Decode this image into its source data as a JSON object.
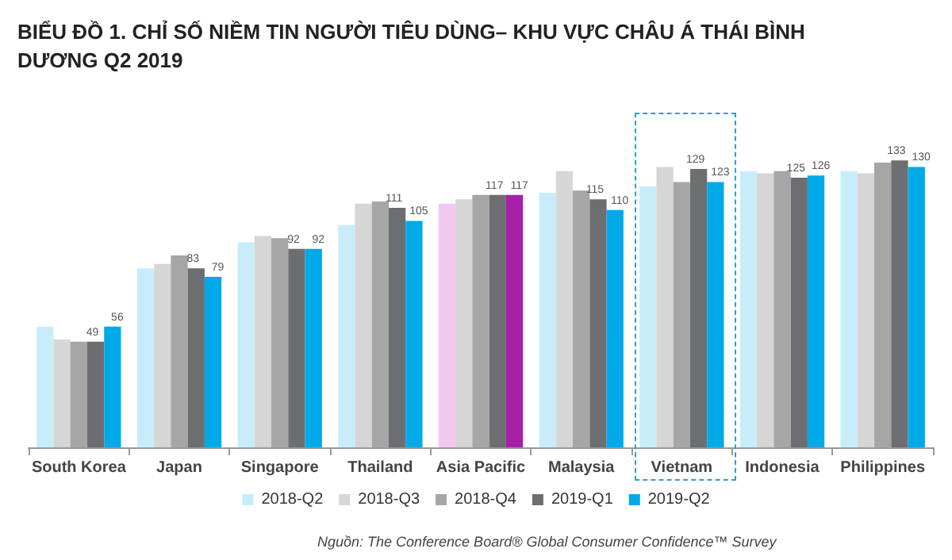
{
  "chart_data": {
    "type": "bar",
    "title": "BIỂU ĐỒ 1. CHỈ SỐ NIỀM TIN NGƯỜI TIÊU DÙNG– KHU VỰC CHÂU Á THÁI BÌNH DƯƠNG Q2 2019",
    "categories": [
      "South Korea",
      "Japan",
      "Singapore",
      "Thailand",
      "Asia Pacific",
      "Malaysia",
      "Vietnam",
      "Indonesia",
      "Philippines"
    ],
    "series": [
      {
        "name": "2018-Q2",
        "color": "#c9ecfb",
        "colors": [
          "#c9ecfb",
          "#c9ecfb",
          "#c9ecfb",
          "#c9ecfb",
          "#f2c8f0",
          "#c9ecfb",
          "#c9ecfb",
          "#c9ecfb",
          "#c9ecfb"
        ],
        "values": [
          56,
          83,
          95,
          103,
          113,
          118,
          121,
          128,
          128
        ]
      },
      {
        "name": "2018-Q3",
        "color": "#d6d6d6",
        "values": [
          50,
          85,
          98,
          113,
          115,
          128,
          130,
          127,
          127
        ]
      },
      {
        "name": "2018-Q4",
        "color": "#a6a6a6",
        "values": [
          49,
          89,
          97,
          114,
          117,
          119,
          123,
          128,
          132
        ]
      },
      {
        "name": "2019-Q1",
        "color": "#6d6e71",
        "values": [
          49,
          83,
          92,
          111,
          117,
          115,
          129,
          125,
          133
        ],
        "value_labels": [
          "49",
          "83",
          "92",
          "111",
          "117",
          "115",
          "129",
          "125",
          "133"
        ]
      },
      {
        "name": "2019-Q2",
        "color": "#00a9e8",
        "colors": [
          "#00a9e8",
          "#00a9e8",
          "#00a9e8",
          "#00a9e8",
          "#a71fa8",
          "#00a9e8",
          "#00a9e8",
          "#00a9e8",
          "#00a9e8"
        ],
        "values": [
          56,
          79,
          92,
          105,
          117,
          110,
          123,
          126,
          130
        ],
        "value_labels": [
          "56",
          "79",
          "92",
          "105",
          "117",
          "110",
          "123",
          "126",
          "130"
        ]
      }
    ],
    "legend": "bottom",
    "annotations": [
      "Nguồn: The Conference Board® Global Consumer Confidence™ Survey"
    ]
  }
}
